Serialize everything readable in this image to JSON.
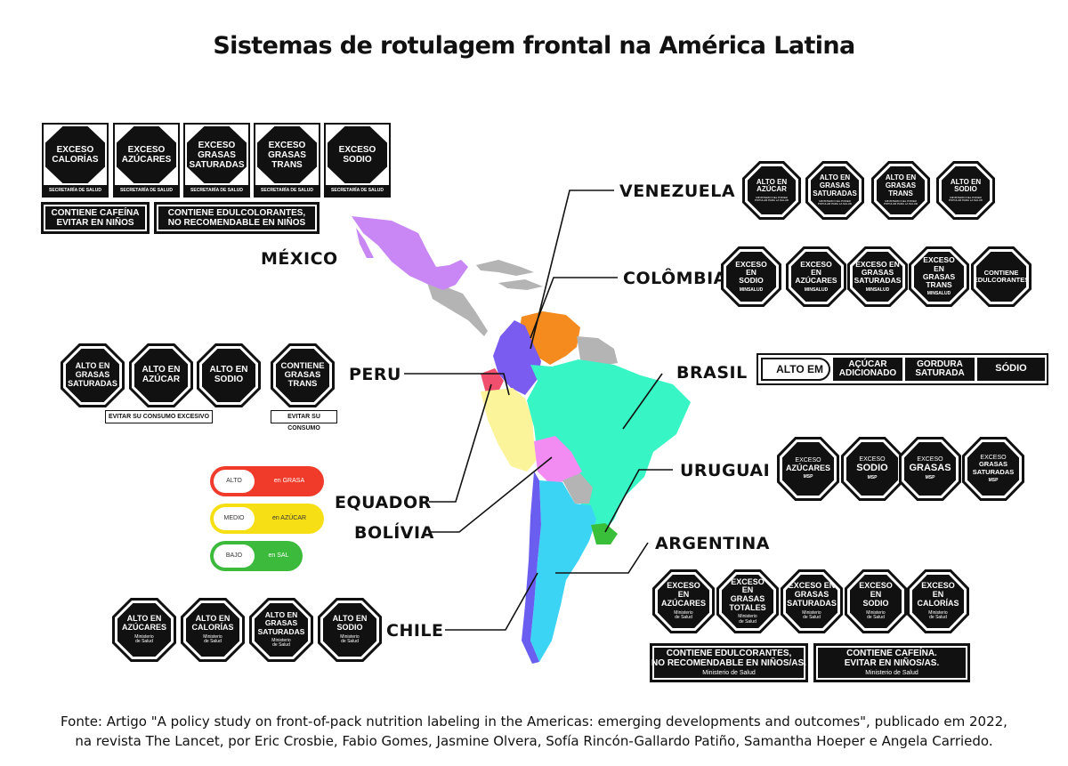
{
  "title": "Sistemas de rotulagem frontal na América Latina",
  "footer": {
    "line1": "Fonte: Artigo \"A policy study on front-of-pack nutrition labeling in the Americas: emerging developments and outcomes\", publicado em 2022,",
    "line2": "na revista The Lancet, por Eric Crosbie, Fabio Gomes, Jasmine Olvera, Sofía Rincón-Gallardo Patiño, Samantha Hoeper e Angela Carriedo."
  },
  "countries": {
    "venezuela": "VENEZUELA",
    "mexico": "MÉXICO",
    "colombia": "COLÔMBIA",
    "peru": "PERU",
    "brasil": "BRASIL",
    "uruguai": "URUGUAI",
    "equador": "EQUADOR",
    "bolivia": "BOLÍVIA",
    "argentina": "ARGENTINA",
    "chile": "CHILE"
  },
  "colors": {
    "mexico": "#c887f5",
    "venezuela": "#f58a1f",
    "colombia": "#7a5cf0",
    "equador": "#f0506e",
    "peru": "#fbf49a",
    "brasil": "#38f5c5",
    "bolivia": "#f28cf2",
    "chile": "#6a5ef0",
    "argentina": "#3cd4f5",
    "uruguai": "#3abf3a",
    "other": "#b4b4b4"
  },
  "mexico": {
    "seals": [
      "EXCESO\nCALORÍAS",
      "EXCESO\nAZÚCARES",
      "EXCESO\nGRASAS\nSATURADAS",
      "EXCESO\nGRASAS\nTRANS",
      "EXCESO\nSODIO"
    ],
    "authority": "SECRETARÍA DE SALUD",
    "warnings": [
      "CONTIENE CAFEÍNA\nEVITAR EN NIÑOS",
      "CONTIENE EDULCOLORANTES,\nNO RECOMENDABLE EN NIÑOS"
    ]
  },
  "venezuela": {
    "seals": [
      "ALTO EN\nAZÚCAR",
      "ALTO EN\nGRASAS\nSATURADAS",
      "ALTO EN\nGRASAS\nTRANS",
      "ALTO EN\nSODIO"
    ],
    "authority": "MINISTERIO DEL PODER\nPOPULAR PARA LA SALUD"
  },
  "colombia": {
    "seals": [
      "EXCESO EN\nSODIO",
      "EXCESO EN\nAZÚCARES",
      "EXCESO EN\nGRASAS\nSATURADAS",
      "EXCESO EN\nGRASAS\nTRANS",
      "CONTIENE\nEDULCORANTES"
    ],
    "authority": "MINSALUD"
  },
  "peru": {
    "seals": [
      "ALTO EN\nGRASAS\nSATURADAS",
      "ALTO EN\nAZÚCAR",
      "ALTO EN\nSODIO",
      "CONTIENE\nGRASAS\nTRANS"
    ],
    "note1": "EVITAR SU CONSUMO EXCESIVO",
    "note2": "EVITAR SU CONSUMO"
  },
  "brasil": {
    "alto": "ALTO EM",
    "items": [
      "AÇÚCAR\nADICIONADO",
      "GORDURA\nSATURADA",
      "SÓDIO"
    ]
  },
  "uruguai": {
    "seals": [
      {
        "top": "EXCESO",
        "main": "AZÚCARES"
      },
      {
        "top": "EXCESO",
        "main": "SODIO"
      },
      {
        "top": "EXCESO",
        "main": "GRASAS"
      },
      {
        "top": "EXCESO",
        "main": "GRASAS\nSATURADAS"
      }
    ],
    "authority": "MSP"
  },
  "equador": {
    "bars": [
      {
        "level": "ALTO",
        "text": "en GRASA",
        "color": "#f03b2b"
      },
      {
        "level": "MEDIO",
        "text": "en AZÚCAR",
        "color": "#f7df16"
      },
      {
        "level": "BAJO",
        "text": "en SAL",
        "color": "#3cba3c"
      }
    ]
  },
  "chile": {
    "seals": [
      "ALTO EN\nAZÚCARES",
      "ALTO EN\nCALORÍAS",
      "ALTO EN\nGRASAS\nSATURADAS",
      "ALTO EN\nSODIO"
    ],
    "authority": "Ministerio\nde Salud"
  },
  "argentina": {
    "seals": [
      "EXCESO EN\nAZÚCARES",
      "EXCESO EN\nGRASAS\nTOTALES",
      "EXCESO EN\nGRASAS\nSATURADAS",
      "EXCESO EN\nSODIO",
      "EXCESO EN\nCALORÍAS"
    ],
    "authority": "Ministerio\nde Salud",
    "warnings": [
      {
        "text": "CONTIENE EDULCORANTES,\nNO RECOMENDABLE EN NIÑOS/AS.",
        "authority": "Ministerio de Salud"
      },
      {
        "text": "CONTIENE CAFEÍNA.\nEVITAR EN NIÑOS/AS.",
        "authority": "Ministerio de Salud"
      }
    ]
  }
}
